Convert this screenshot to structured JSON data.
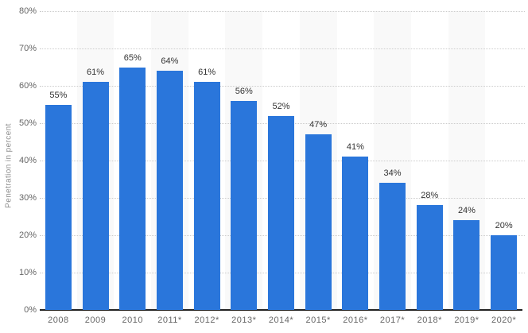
{
  "chart_data": {
    "type": "bar",
    "title": "",
    "xlabel": "",
    "ylabel": "Penetration in percent",
    "categories": [
      "2008",
      "2009",
      "2010",
      "2011*",
      "2012*",
      "2013*",
      "2014*",
      "2015*",
      "2016*",
      "2017*",
      "2018*",
      "2019*",
      "2020*"
    ],
    "values": [
      55,
      61,
      65,
      64,
      61,
      56,
      52,
      47,
      41,
      34,
      28,
      24,
      20
    ],
    "data_labels": [
      "55%",
      "61%",
      "65%",
      "64%",
      "61%",
      "56%",
      "52%",
      "47%",
      "41%",
      "34%",
      "28%",
      "24%",
      "20%"
    ],
    "ylim": [
      0,
      80
    ],
    "y_tick_labels": [
      "0%",
      "10%",
      "20%",
      "30%",
      "40%",
      "50%",
      "60%",
      "70%",
      "80%"
    ],
    "grid": "horizontal-dotted",
    "legend": "none",
    "colors": {
      "bar": "#2a76db",
      "column_stripe": "#f9f9f9",
      "gridline": "#cccccc",
      "axis_line": "#222222",
      "tick_text": "#666666",
      "value_text": "#333333",
      "axis_title_text": "#8f8f8f",
      "background": "#ffffff"
    }
  }
}
